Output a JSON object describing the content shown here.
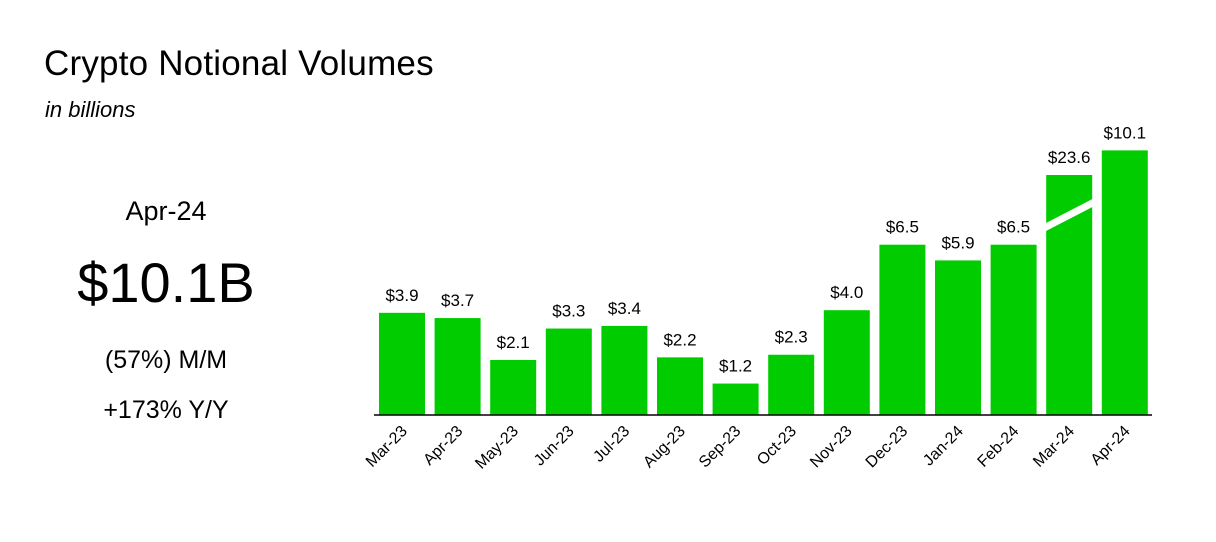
{
  "header": {
    "title": "Crypto Notional Volumes",
    "subtitle": "in billions"
  },
  "kpi": {
    "period": "Apr-24",
    "value": "$10.1B",
    "mom": "(57%) M/M",
    "yoy": "+173% Y/Y"
  },
  "colors": {
    "bar": "#00cc00",
    "axis": "#000000"
  },
  "chart_data": {
    "type": "bar",
    "categories": [
      "Mar-23",
      "Apr-23",
      "May-23",
      "Jun-23",
      "Jul-23",
      "Aug-23",
      "Sep-23",
      "Oct-23",
      "Nov-23",
      "Dec-23",
      "Jan-24",
      "Feb-24",
      "Mar-24",
      "Apr-24"
    ],
    "values": [
      3.9,
      3.7,
      2.1,
      3.3,
      3.4,
      2.2,
      1.2,
      2.3,
      4.0,
      6.5,
      5.9,
      6.5,
      23.6,
      10.1
    ],
    "data_labels": [
      "$3.9",
      "$3.7",
      "$2.1",
      "$3.3",
      "$3.4",
      "$2.2",
      "$1.2",
      "$2.3",
      "$4.0",
      "$6.5",
      "$5.9",
      "$6.5",
      "$23.6",
      "$10.1"
    ],
    "axis_break": {
      "category": "Mar-24"
    },
    "title": "Crypto Notional Volumes",
    "subtitle": "in billions",
    "xlabel": "",
    "ylabel": "",
    "grid": false,
    "legend": "none"
  }
}
